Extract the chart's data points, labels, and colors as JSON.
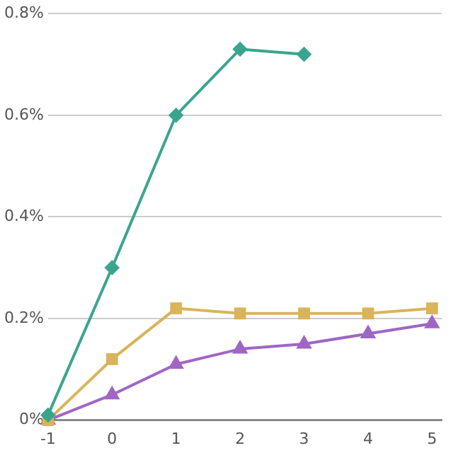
{
  "chart_data": {
    "type": "line",
    "x": [
      -1,
      0,
      1,
      2,
      3,
      4,
      5
    ],
    "xlim": [
      -1,
      5.15
    ],
    "xticks": [
      -1,
      0,
      1,
      2,
      3,
      4,
      5
    ],
    "ylim": [
      0,
      0.8
    ],
    "yticks": [
      {
        "value": 0,
        "label": "0%"
      },
      {
        "value": 0.2,
        "label": "0.2%"
      },
      {
        "value": 0.4,
        "label": "0.4%"
      },
      {
        "value": 0.6,
        "label": "0.6%"
      },
      {
        "value": 0.8,
        "label": "0.8%"
      }
    ],
    "grid": "y",
    "legend": false,
    "series": [
      {
        "color": "#3aa58f",
        "marker": "diamond",
        "values": [
          0.01,
          0.3,
          0.6,
          0.73,
          0.72,
          null,
          null
        ]
      },
      {
        "color": "#d9b45a",
        "marker": "square",
        "values": [
          0,
          0.12,
          0.22,
          0.21,
          0.21,
          0.21,
          0.22
        ]
      },
      {
        "color": "#a066c4",
        "marker": "triangle",
        "values": [
          0,
          0.05,
          0.11,
          0.14,
          0.15,
          0.17,
          0.19
        ]
      }
    ]
  }
}
